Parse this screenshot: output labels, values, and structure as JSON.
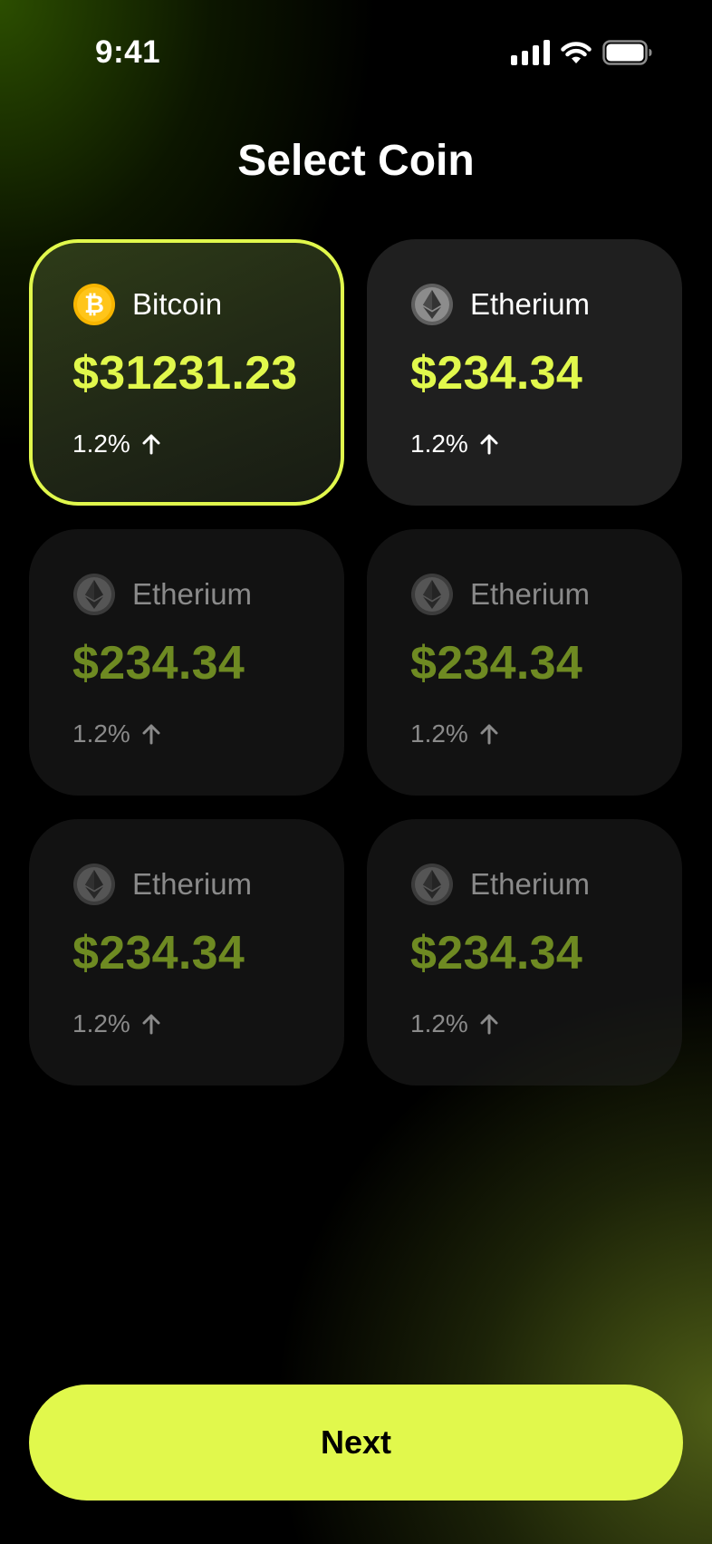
{
  "status_bar": {
    "time": "9:41"
  },
  "title": "Select Coin",
  "colors": {
    "accent": "#E1F84C",
    "dim_price": "#6E8A22",
    "bitcoin": "#F7B500"
  },
  "coins": [
    {
      "name": "Bitcoin",
      "price": "$31231.23",
      "change": "1.2%",
      "icon": "bitcoin-icon",
      "selected": true
    },
    {
      "name": "Etherium",
      "price": "$234.34",
      "change": "1.2%",
      "icon": "ethereum-icon",
      "selected": false
    },
    {
      "name": "Etherium",
      "price": "$234.34",
      "change": "1.2%",
      "icon": "ethereum-icon",
      "selected": false
    },
    {
      "name": "Etherium",
      "price": "$234.34",
      "change": "1.2%",
      "icon": "ethereum-icon",
      "selected": false
    },
    {
      "name": "Etherium",
      "price": "$234.34",
      "change": "1.2%",
      "icon": "ethereum-icon",
      "selected": false
    },
    {
      "name": "Etherium",
      "price": "$234.34",
      "change": "1.2%",
      "icon": "ethereum-icon",
      "selected": false
    }
  ],
  "next_label": "Next"
}
